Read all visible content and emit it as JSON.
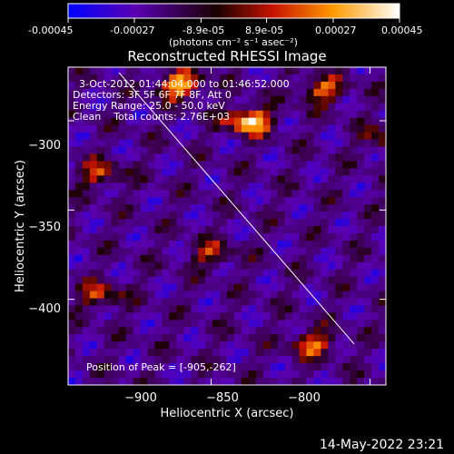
{
  "colorbar": {
    "tick_labels": [
      "-0.00045",
      "-0.00027",
      "-8.9e-05",
      "8.9e-05",
      "0.00027",
      "0.00045"
    ],
    "tick_values": [
      -0.00045,
      -0.00027,
      -8.9e-05,
      8.9e-05,
      0.00027,
      0.00045
    ],
    "unit_label": "(photons cm⁻² s⁻¹ asec⁻²)",
    "colors": [
      "#0000ff",
      "#5a00b4",
      "#1a0000",
      "#c81400",
      "#ff9a00",
      "#ffffff"
    ]
  },
  "chart_data": {
    "type": "heatmap",
    "title": "Reconstructed RHESSI Image",
    "xlabel": "Heliocentric X (arcsec)",
    "ylabel": "Heliocentric Y (arcsec)",
    "xlim": [
      -945,
      -845
    ],
    "ylim": [
      -448,
      -270
    ],
    "x_ticks": [
      -900,
      -850,
      -800
    ],
    "y_ticks": [
      -300,
      -350,
      -400
    ],
    "x_tick_labels": [
      "−900",
      "−850",
      "−800"
    ],
    "y_tick_labels": [
      "−300",
      "−350",
      "−400"
    ],
    "limb_line": [
      [
        -929,
        -273
      ],
      [
        -855,
        -425
      ]
    ],
    "peak": [
      -905,
      -262
    ],
    "hotspots": [
      {
        "x": -823,
        "y": -345,
        "level": 0.95
      },
      {
        "x": -812,
        "y": -340,
        "level": 0.8
      },
      {
        "x": -888,
        "y": -300,
        "level": 0.85
      },
      {
        "x": -910,
        "y": -280,
        "level": 0.75
      },
      {
        "x": -865,
        "y": -283,
        "level": 0.55
      },
      {
        "x": -790,
        "y": -325,
        "level": 0.6
      },
      {
        "x": -778,
        "y": -420,
        "level": 0.7
      },
      {
        "x": -828,
        "y": -398,
        "level": 0.55
      },
      {
        "x": -868,
        "y": -425,
        "level": 0.55
      },
      {
        "x": -935,
        "y": -398,
        "level": 0.45
      },
      {
        "x": -935,
        "y": -330,
        "level": 0.45
      },
      {
        "x": -845,
        "y": -310,
        "level": 0.4
      },
      {
        "x": -900,
        "y": -375,
        "level": 0.4
      }
    ],
    "annotations": [
      "3-Oct-2012 01:44:04.000 to 01:46:52.000",
      "Detectors: 3F 5F 6F 7F 8F, Att 0",
      "Energy Range: 25.0 - 50.0 keV",
      "Clean    Total counts: 2.76E+03"
    ],
    "peak_label": "Position of Peak = [-905,-262]"
  },
  "footer": {
    "timestamp": "14-May-2022 23:21"
  }
}
